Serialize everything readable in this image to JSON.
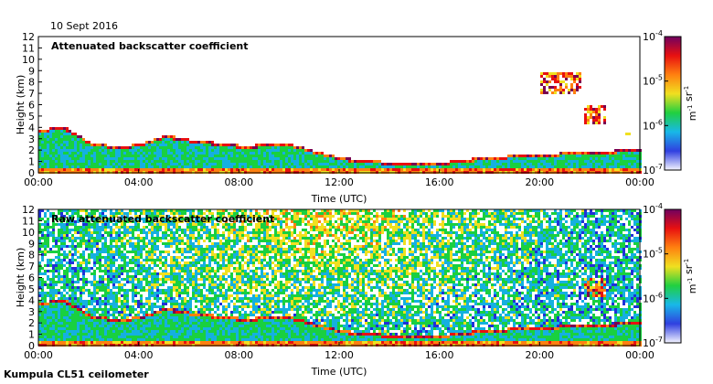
{
  "header": {
    "date": "10 Sept 2016"
  },
  "footer": {
    "caption": "Kumpula CL51 ceilometer"
  },
  "chart_data": [
    {
      "type": "heatmap",
      "title": "Attenuated backscatter coefficient",
      "xlabel": "Time (UTC)",
      "ylabel": "Height (km)",
      "xticks": [
        "00:00",
        "04:00",
        "08:00",
        "12:00",
        "16:00",
        "20:00",
        "00:00"
      ],
      "xlim_hours": [
        0,
        24
      ],
      "ylim": [
        0,
        12
      ],
      "yticks": [
        "0",
        "1",
        "2",
        "3",
        "4",
        "5",
        "6",
        "7",
        "8",
        "9",
        "10",
        "11",
        "12"
      ],
      "colorbar": {
        "scale": "log",
        "ticks": [
          "10-7",
          "10-6",
          "10-5",
          "10-4"
        ],
        "range": [
          1e-07,
          0.0001
        ],
        "label": "m-1 sr-1"
      },
      "grid": false,
      "colors": [
        "#ffffff",
        "#2030d8",
        "#15b0e0",
        "#19d040",
        "#f0e020",
        "#ff8010",
        "#e81010",
        "#7a0050"
      ],
      "features": {
        "boundary_layer_top_km": [
          [
            0,
            3.7
          ],
          [
            1,
            3.9
          ],
          [
            2,
            2.6
          ],
          [
            3,
            2.2
          ],
          [
            4,
            2.4
          ],
          [
            5,
            3.2
          ],
          [
            6,
            2.8
          ],
          [
            8,
            2.3
          ],
          [
            10,
            2.4
          ],
          [
            12,
            1.2
          ],
          [
            14,
            0.8
          ],
          [
            16,
            0.8
          ],
          [
            18,
            1.3
          ],
          [
            20,
            1.5
          ],
          [
            22,
            1.8
          ],
          [
            24,
            1.9
          ]
        ],
        "cloud_layers": [
          {
            "t_start_h": 20.0,
            "t_end_h": 21.6,
            "base_km": 7.0,
            "top_km": 9.0
          },
          {
            "t_start_h": 21.7,
            "t_end_h": 22.6,
            "base_km": 4.5,
            "top_km": 6.0
          },
          {
            "t_start_h": 23.2,
            "t_end_h": 23.6,
            "base_km": 3.5,
            "top_km": 4.0
          }
        ]
      }
    },
    {
      "type": "heatmap",
      "title": "Raw attenuated backscatter coefficient",
      "xlabel": "Time (UTC)",
      "ylabel": "Height (km)",
      "xticks": [
        "00:00",
        "04:00",
        "08:00",
        "12:00",
        "16:00",
        "20:00",
        "00:00"
      ],
      "xlim_hours": [
        0,
        24
      ],
      "ylim": [
        0,
        12
      ],
      "yticks": [
        "0",
        "1",
        "2",
        "3",
        "4",
        "5",
        "6",
        "7",
        "8",
        "9",
        "10",
        "11",
        "12"
      ],
      "colorbar": {
        "scale": "log",
        "ticks": [
          "10-7",
          "10-6",
          "10-5",
          "10-4"
        ],
        "range": [
          1e-07,
          0.0001
        ],
        "label": "m-1 sr-1"
      },
      "grid": false,
      "colors": [
        "#ffffff",
        "#2030d8",
        "#15b0e0",
        "#19d040",
        "#f0e020",
        "#ff8010",
        "#e81010",
        "#7a0050"
      ],
      "features": {
        "noise_background": "high",
        "boundary_layer_top_km": [
          [
            0,
            3.7
          ],
          [
            1,
            3.9
          ],
          [
            2,
            2.6
          ],
          [
            3,
            2.2
          ],
          [
            4,
            2.4
          ],
          [
            5,
            3.2
          ],
          [
            6,
            2.8
          ],
          [
            8,
            2.3
          ],
          [
            10,
            2.4
          ],
          [
            12,
            1.2
          ],
          [
            14,
            0.8
          ],
          [
            16,
            0.8
          ],
          [
            18,
            1.3
          ],
          [
            20,
            1.5
          ],
          [
            22,
            1.8
          ],
          [
            24,
            1.9
          ]
        ],
        "cloud_layers": [
          {
            "t_start_h": 21.7,
            "t_end_h": 22.6,
            "base_km": 4.5,
            "top_km": 6.0
          }
        ]
      }
    }
  ]
}
